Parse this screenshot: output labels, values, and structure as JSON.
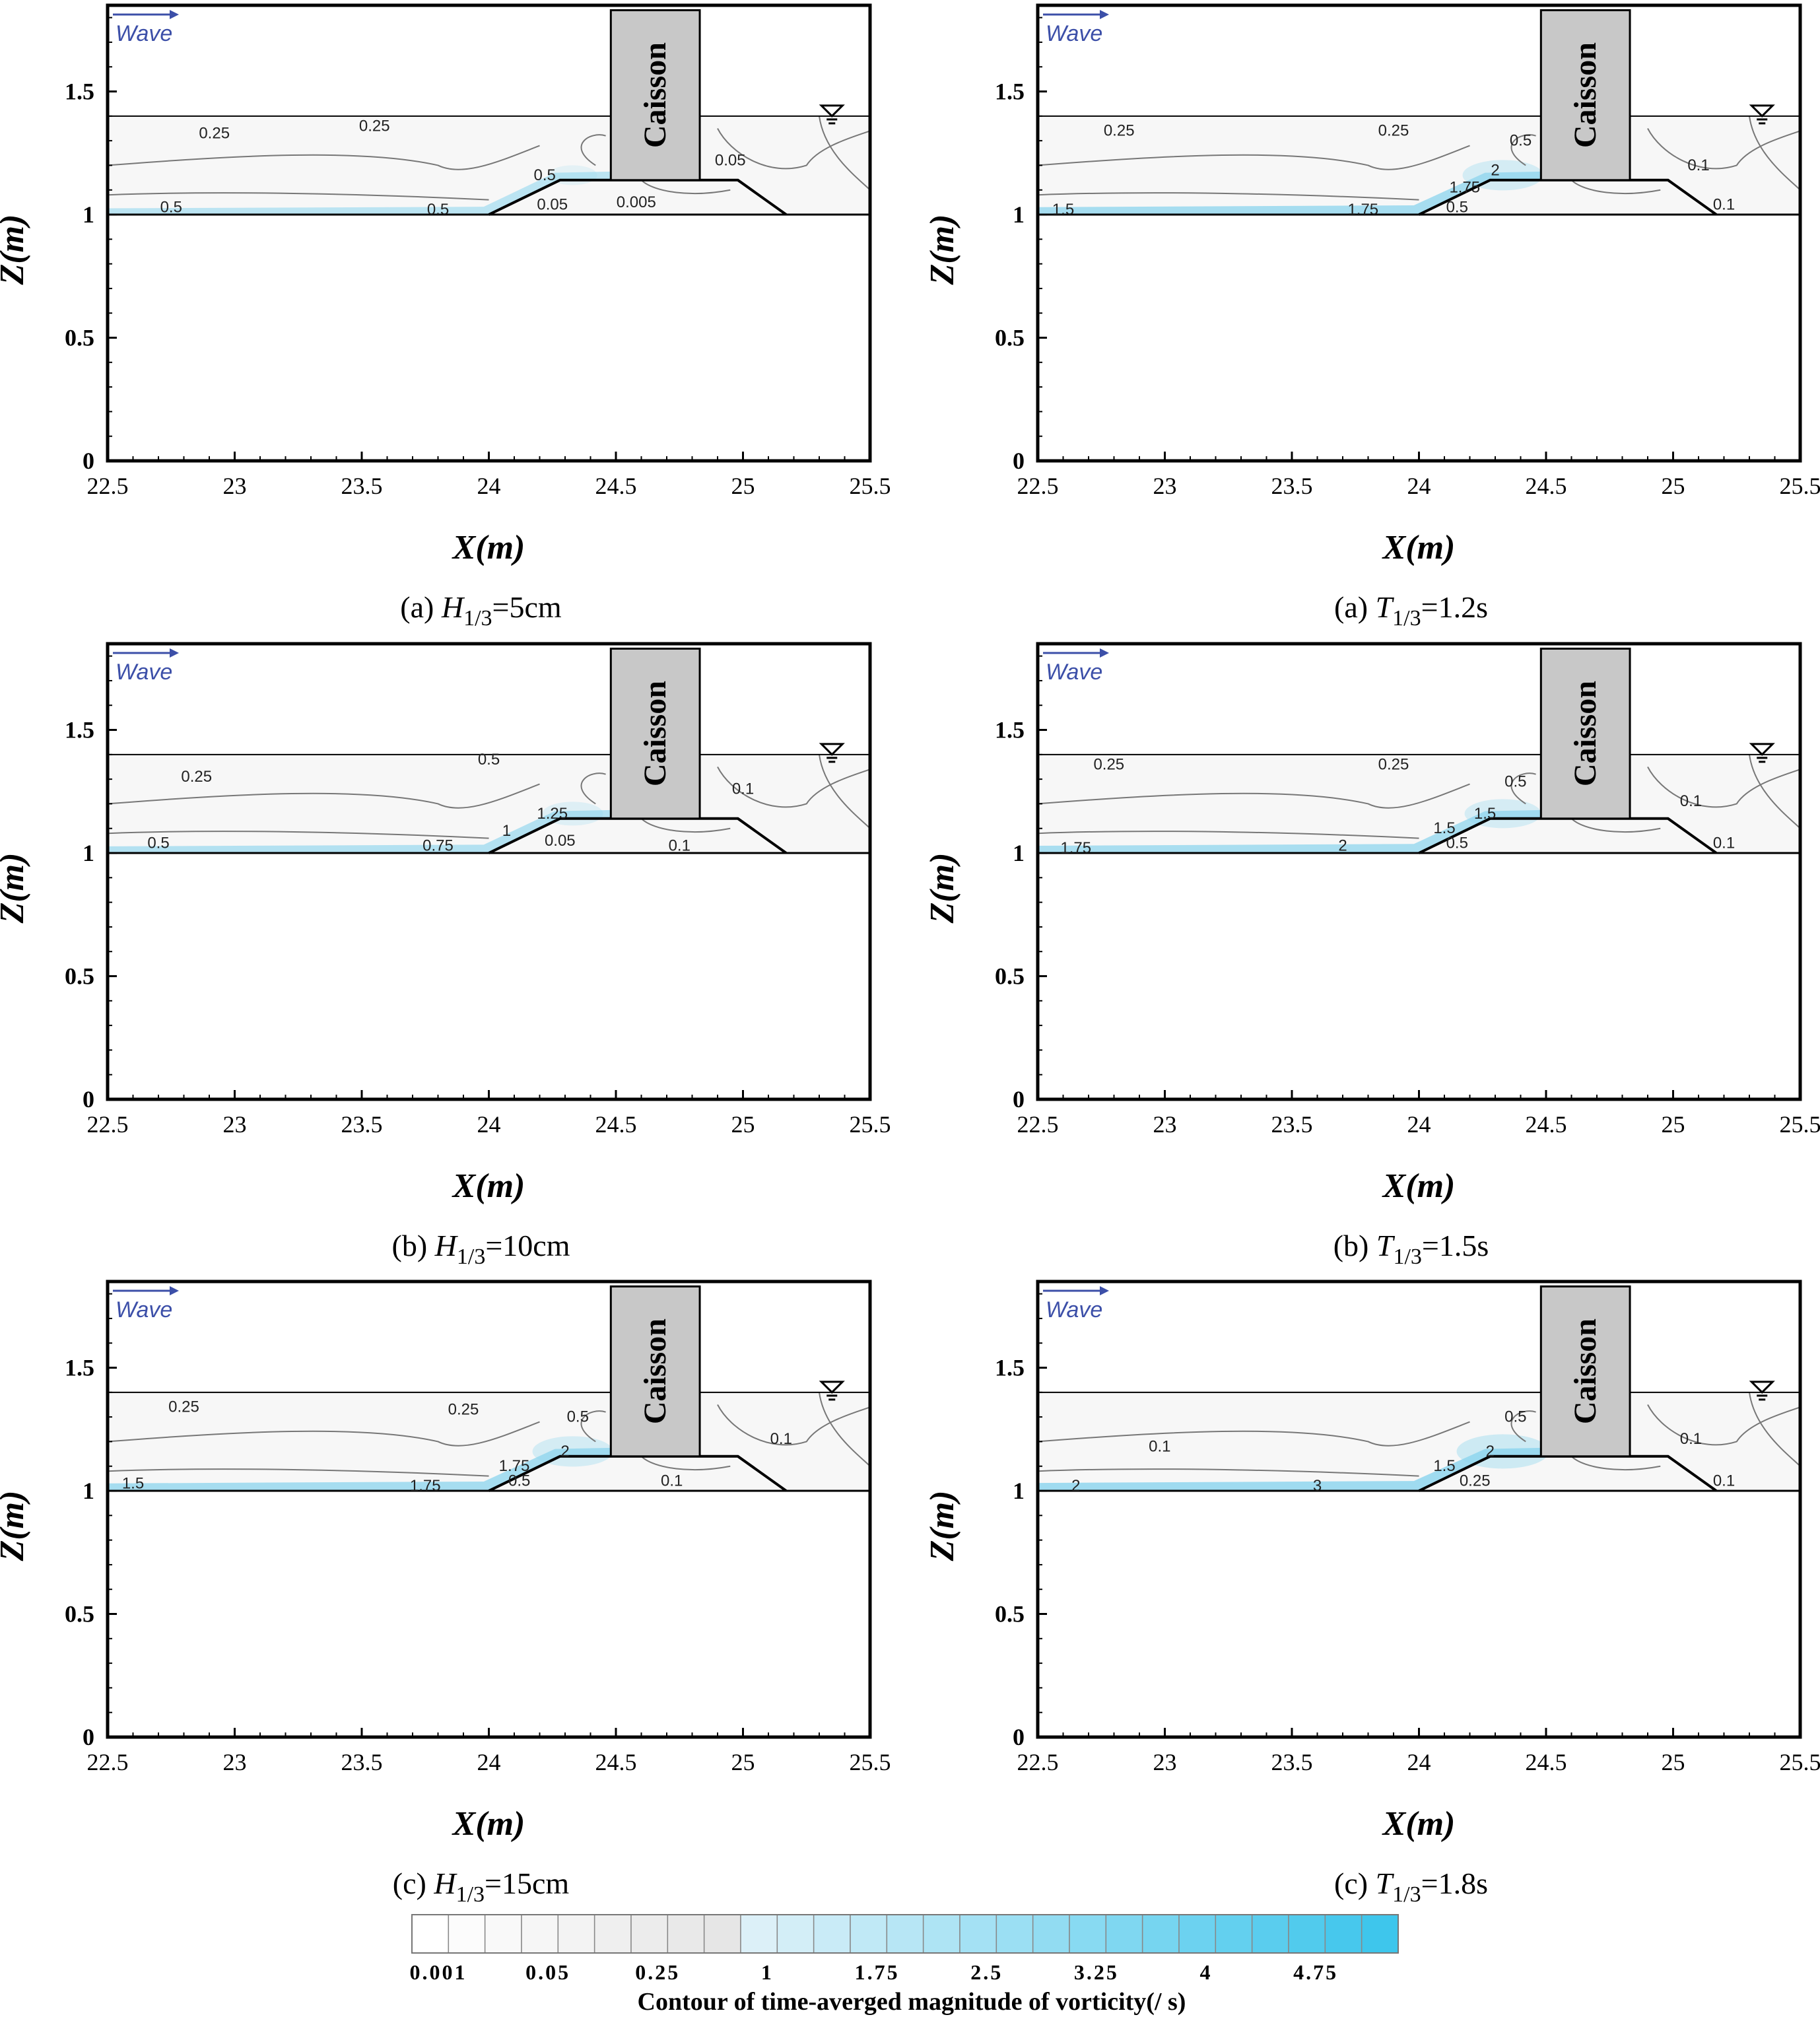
{
  "figure": {
    "wave_label": "Wave",
    "caisson_label": "Caisson",
    "x_axis_title": "X(m)",
    "y_axis_title": "Z(m)",
    "x_ticks": [
      "22.5",
      "23",
      "23.5",
      "24",
      "24.5",
      "25",
      "25.5"
    ],
    "y_ticks": [
      "0",
      "0.5",
      "1",
      "1.5"
    ],
    "colorbar": {
      "title": "Contour of time-averged magnitude of vorticity(/ s)",
      "tick_labels": [
        "0.001",
        "0.05",
        "0.25",
        "1",
        "1.75",
        "2.5",
        "3.25",
        "4",
        "4.75"
      ],
      "n_levels": 27,
      "color_low": "#ffffff",
      "color_mid": "#e6e6e6",
      "color_high": "#3ec6ec"
    },
    "colors": {
      "arrow": "#3c4fa8",
      "caisson_fill": "#c8c8c8",
      "water_fill": "#f7f7f7",
      "flow_band": "#8fd6ee",
      "contour_line": "#777777",
      "axis": "#000000"
    }
  },
  "chart_data": [
    {
      "type": "heatmap",
      "panel": "a-left",
      "caption_prefix": "(a)",
      "caption_var": "H",
      "caption_sub": "1/3",
      "caption_value": "=5cm",
      "xlabel": "X(m)",
      "ylabel": "Z(m)",
      "xlim": [
        22.5,
        25.5
      ],
      "ylim": [
        0,
        1.85
      ],
      "still_water_level": 1.4,
      "seabed_level": 1.0,
      "mound": {
        "toe_left": 24.0,
        "crest_left": 24.28,
        "crest_right": 24.98,
        "toe_right": 25.17,
        "crest_z": 1.14
      },
      "caisson": {
        "x0": 24.48,
        "x1": 24.83,
        "z0": 1.14,
        "z1": 1.83
      },
      "band_strength": 0.45,
      "contour_labels": [
        {
          "text": "0.25",
          "x": 22.92,
          "z": 1.33
        },
        {
          "text": "0.25",
          "x": 23.55,
          "z": 1.36
        },
        {
          "text": "0.5",
          "x": 24.22,
          "z": 1.16
        },
        {
          "text": "0.05",
          "x": 24.95,
          "z": 1.22
        },
        {
          "text": "0.05",
          "x": 24.25,
          "z": 1.04
        },
        {
          "text": "0.005",
          "x": 24.58,
          "z": 1.05
        },
        {
          "text": "0.5",
          "x": 22.75,
          "z": 1.03
        },
        {
          "text": "0.5",
          "x": 23.8,
          "z": 1.02
        }
      ]
    },
    {
      "type": "heatmap",
      "panel": "a-right",
      "caption_prefix": "(a)",
      "caption_var": "T",
      "caption_sub": "1/3",
      "caption_value": "=1.2s",
      "xlabel": "X(m)",
      "ylabel": "Z(m)",
      "xlim": [
        22.5,
        25.5
      ],
      "ylim": [
        0,
        1.85
      ],
      "still_water_level": 1.4,
      "seabed_level": 1.0,
      "mound": {
        "toe_left": 24.0,
        "crest_left": 24.28,
        "crest_right": 24.98,
        "toe_right": 25.17,
        "crest_z": 1.14
      },
      "caisson": {
        "x0": 24.48,
        "x1": 24.83,
        "z0": 1.14,
        "z1": 1.83
      },
      "band_strength": 0.85,
      "contour_labels": [
        {
          "text": "0.25",
          "x": 22.82,
          "z": 1.34
        },
        {
          "text": "0.25",
          "x": 23.9,
          "z": 1.34
        },
        {
          "text": "0.5",
          "x": 24.4,
          "z": 1.3
        },
        {
          "text": "0.1",
          "x": 25.1,
          "z": 1.2
        },
        {
          "text": "1.75",
          "x": 24.18,
          "z": 1.11
        },
        {
          "text": "2",
          "x": 24.3,
          "z": 1.18
        },
        {
          "text": "0.5",
          "x": 24.15,
          "z": 1.03
        },
        {
          "text": "0.1",
          "x": 25.2,
          "z": 1.04
        },
        {
          "text": "1.5",
          "x": 22.6,
          "z": 1.02
        },
        {
          "text": "1.75",
          "x": 23.78,
          "z": 1.02
        }
      ]
    },
    {
      "type": "heatmap",
      "panel": "b-left",
      "caption_prefix": "(b)",
      "caption_var": "H",
      "caption_sub": "1/3",
      "caption_value": "=10cm",
      "xlabel": "X(m)",
      "ylabel": "Z(m)",
      "xlim": [
        22.5,
        25.5
      ],
      "ylim": [
        0,
        1.85
      ],
      "still_water_level": 1.4,
      "seabed_level": 1.0,
      "mound": {
        "toe_left": 24.0,
        "crest_left": 24.28,
        "crest_right": 24.98,
        "toe_right": 25.17,
        "crest_z": 1.14
      },
      "caisson": {
        "x0": 24.48,
        "x1": 24.83,
        "z0": 1.14,
        "z1": 1.83
      },
      "band_strength": 0.6,
      "contour_labels": [
        {
          "text": "0.25",
          "x": 22.85,
          "z": 1.31
        },
        {
          "text": "0.5",
          "x": 24.0,
          "z": 1.38
        },
        {
          "text": "0.1",
          "x": 25.0,
          "z": 1.26
        },
        {
          "text": "1.25",
          "x": 24.25,
          "z": 1.16
        },
        {
          "text": "1",
          "x": 24.07,
          "z": 1.09
        },
        {
          "text": "0.05",
          "x": 24.28,
          "z": 1.05
        },
        {
          "text": "0.1",
          "x": 24.75,
          "z": 1.03
        },
        {
          "text": "0.5",
          "x": 22.7,
          "z": 1.04
        },
        {
          "text": "0.75",
          "x": 23.8,
          "z": 1.03
        }
      ]
    },
    {
      "type": "heatmap",
      "panel": "b-right",
      "caption_prefix": "(b)",
      "caption_var": "T",
      "caption_sub": "1/3",
      "caption_value": "=1.5s",
      "xlabel": "X(m)",
      "ylabel": "Z(m)",
      "xlim": [
        22.5,
        25.5
      ],
      "ylim": [
        0,
        1.85
      ],
      "still_water_level": 1.4,
      "seabed_level": 1.0,
      "mound": {
        "toe_left": 24.0,
        "crest_left": 24.28,
        "crest_right": 24.98,
        "toe_right": 25.17,
        "crest_z": 1.14
      },
      "caisson": {
        "x0": 24.48,
        "x1": 24.83,
        "z0": 1.14,
        "z1": 1.83
      },
      "band_strength": 0.8,
      "contour_labels": [
        {
          "text": "0.25",
          "x": 22.78,
          "z": 1.36
        },
        {
          "text": "0.25",
          "x": 23.9,
          "z": 1.36
        },
        {
          "text": "0.5",
          "x": 24.38,
          "z": 1.29
        },
        {
          "text": "0.1",
          "x": 25.07,
          "z": 1.21
        },
        {
          "text": "1.5",
          "x": 24.1,
          "z": 1.1
        },
        {
          "text": "1.5",
          "x": 24.26,
          "z": 1.16
        },
        {
          "text": "0.5",
          "x": 24.15,
          "z": 1.04
        },
        {
          "text": "0.1",
          "x": 25.2,
          "z": 1.04
        },
        {
          "text": "1.75",
          "x": 22.65,
          "z": 1.02
        },
        {
          "text": "2",
          "x": 23.7,
          "z": 1.03
        }
      ]
    },
    {
      "type": "heatmap",
      "panel": "c-left",
      "caption_prefix": "(c)",
      "caption_var": "H",
      "caption_sub": "1/3",
      "caption_value": "=15cm",
      "xlabel": "X(m)",
      "ylabel": "Z(m)",
      "xlim": [
        22.5,
        25.5
      ],
      "ylim": [
        0,
        1.85
      ],
      "still_water_level": 1.4,
      "seabed_level": 1.0,
      "mound": {
        "toe_left": 24.0,
        "crest_left": 24.28,
        "crest_right": 24.98,
        "toe_right": 25.17,
        "crest_z": 1.14
      },
      "caisson": {
        "x0": 24.48,
        "x1": 24.83,
        "z0": 1.14,
        "z1": 1.83
      },
      "band_strength": 0.85,
      "contour_labels": [
        {
          "text": "0.25",
          "x": 22.8,
          "z": 1.34
        },
        {
          "text": "0.25",
          "x": 23.9,
          "z": 1.33
        },
        {
          "text": "0.5",
          "x": 24.35,
          "z": 1.3
        },
        {
          "text": "0.1",
          "x": 25.15,
          "z": 1.21
        },
        {
          "text": "1.75",
          "x": 24.1,
          "z": 1.1
        },
        {
          "text": "2",
          "x": 24.3,
          "z": 1.16
        },
        {
          "text": "0.5",
          "x": 24.12,
          "z": 1.04
        },
        {
          "text": "0.1",
          "x": 24.72,
          "z": 1.04
        },
        {
          "text": "1.5",
          "x": 22.6,
          "z": 1.03
        },
        {
          "text": "1.75",
          "x": 23.75,
          "z": 1.02
        }
      ]
    },
    {
      "type": "heatmap",
      "panel": "c-right",
      "caption_prefix": "(c)",
      "caption_var": "T",
      "caption_sub": "1/3",
      "caption_value": "=1.8s",
      "xlabel": "X(m)",
      "ylabel": "Z(m)",
      "xlim": [
        22.5,
        25.5
      ],
      "ylim": [
        0,
        1.85
      ],
      "still_water_level": 1.4,
      "seabed_level": 1.0,
      "mound": {
        "toe_left": 24.0,
        "crest_left": 24.28,
        "crest_right": 24.98,
        "toe_right": 25.17,
        "crest_z": 1.14
      },
      "caisson": {
        "x0": 24.48,
        "x1": 24.83,
        "z0": 1.14,
        "z1": 1.83
      },
      "band_strength": 1.0,
      "contour_labels": [
        {
          "text": "0.1",
          "x": 22.98,
          "z": 1.18
        },
        {
          "text": "0.5",
          "x": 24.38,
          "z": 1.3
        },
        {
          "text": "0.1",
          "x": 25.07,
          "z": 1.21
        },
        {
          "text": "1.5",
          "x": 24.1,
          "z": 1.1
        },
        {
          "text": "2",
          "x": 24.28,
          "z": 1.16
        },
        {
          "text": "0.25",
          "x": 24.22,
          "z": 1.04
        },
        {
          "text": "0.1",
          "x": 25.2,
          "z": 1.04
        },
        {
          "text": "2",
          "x": 22.65,
          "z": 1.02
        },
        {
          "text": "3",
          "x": 23.6,
          "z": 1.02
        }
      ]
    }
  ]
}
